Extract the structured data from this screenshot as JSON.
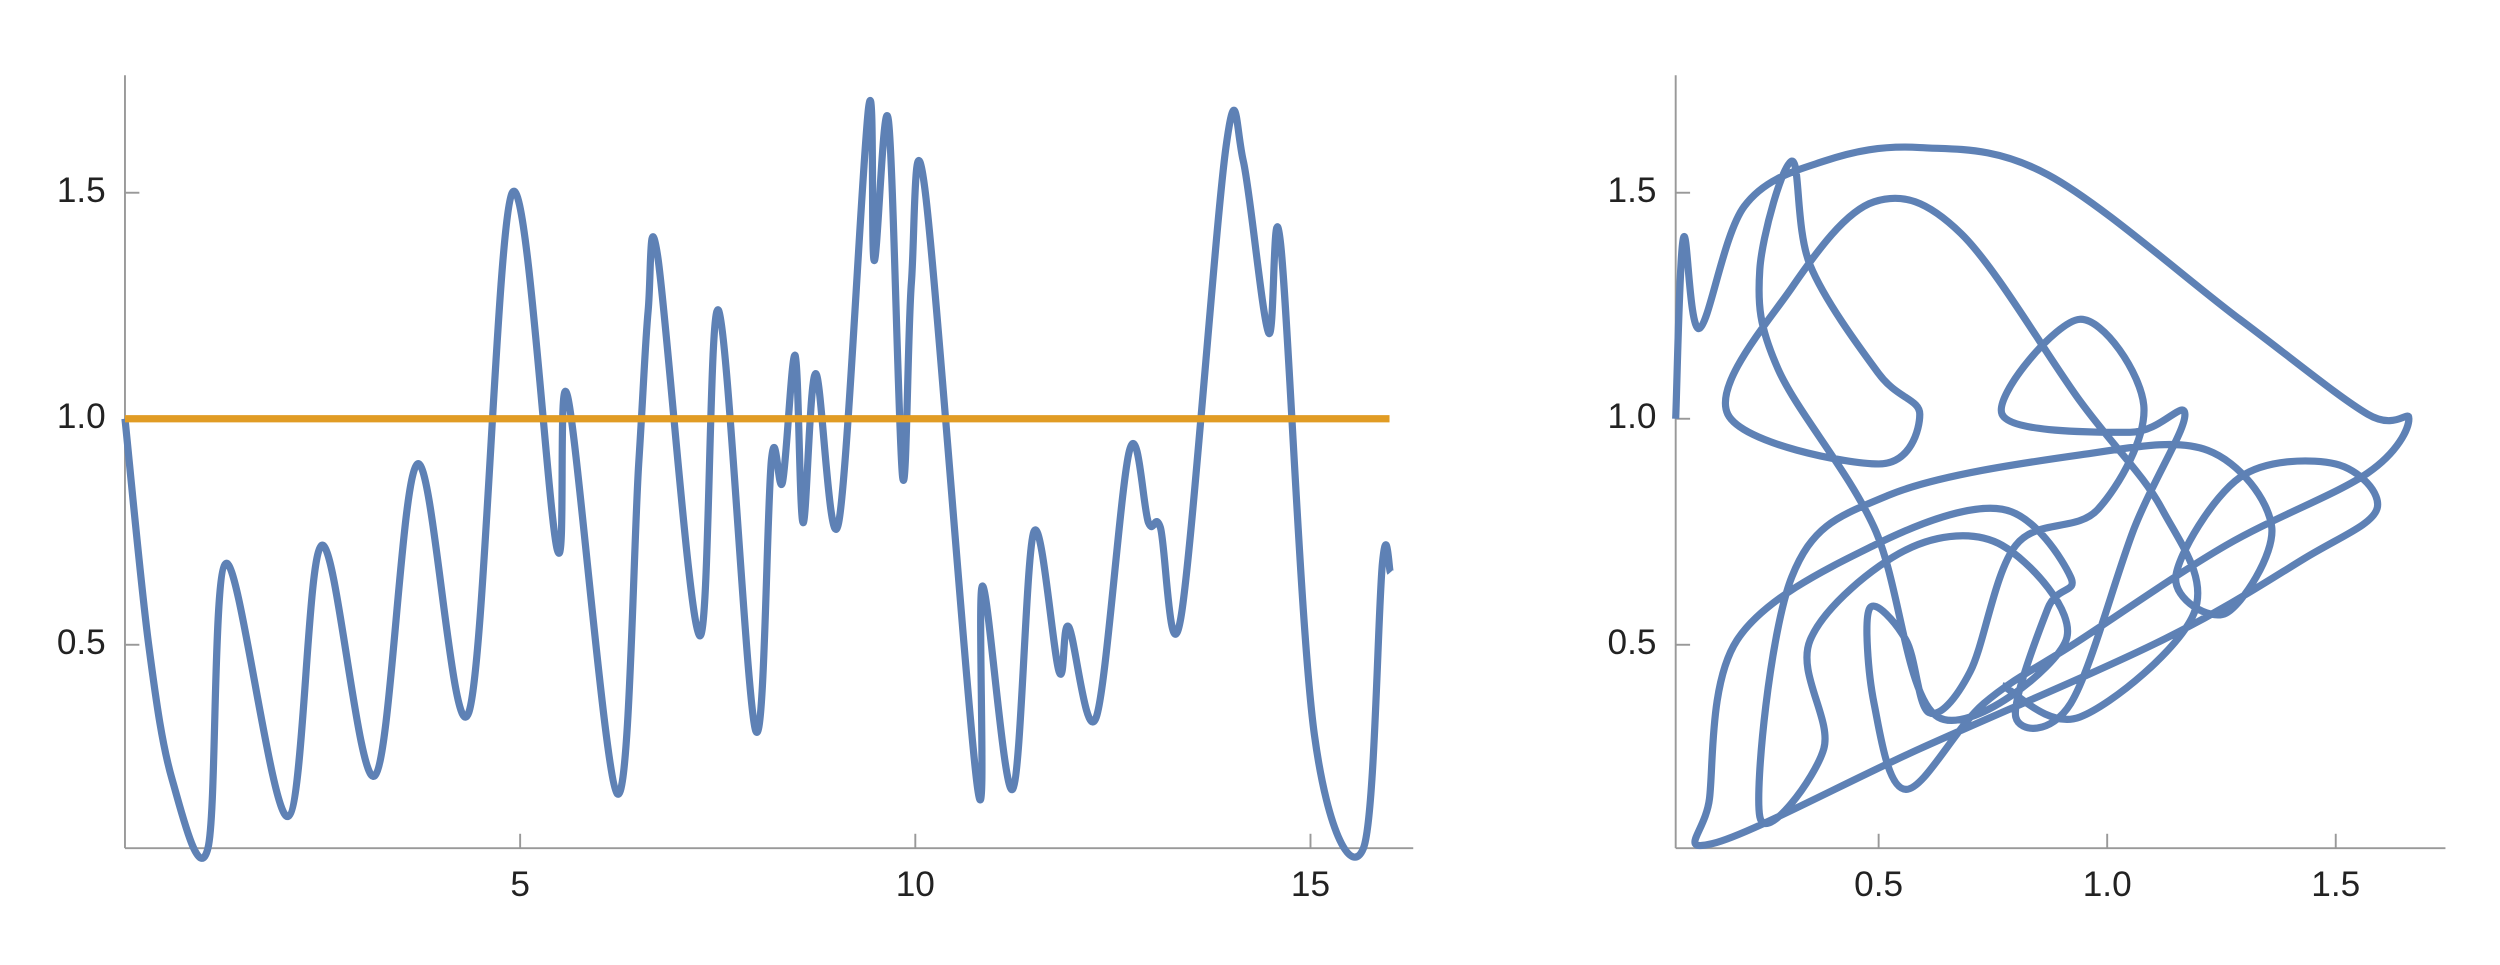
{
  "chart_data": [
    {
      "type": "line",
      "xlim": [
        0,
        16.3
      ],
      "ylim": [
        0.05,
        1.76
      ],
      "xticks": [
        5,
        10,
        15
      ],
      "yticks": [
        0.5,
        {
          "value": 1,
          "label": "1.0"
        },
        1.5
      ],
      "series": [
        {
          "color": "#5e81b5",
          "x": [
            0,
            0.3,
            0.6,
            1.05,
            1.28,
            2.06,
            2.49,
            3.16,
            3.7,
            4.35,
            4.9,
            5.47,
            5.6,
            6.23,
            6.5,
            6.62,
            6.74,
            7.27,
            7.51,
            7.98,
            8.18,
            8.32,
            8.48,
            8.58,
            8.74,
            9.03,
            9.41,
            9.48,
            9.66,
            9.84,
            9.95,
            10.12,
            10.79,
            10.85,
            11.23,
            11.5,
            11.82,
            11.94,
            12.29,
            12.71,
            12.95,
            13.1,
            13.36,
            13.93,
            14.15,
            14.47,
            14.62,
            15.05,
            15.67,
            15.91,
            16.01
          ],
          "values": [
            1.0,
            0.5,
            0.2,
            0.05,
            0.68,
            0.12,
            0.72,
            0.21,
            0.9,
            0.35,
            1.5,
            0.71,
            1.05,
            0.17,
            0.9,
            1.24,
            1.36,
            0.52,
            1.24,
            0.31,
            0.91,
            0.86,
            1.14,
            0.77,
            1.1,
            0.77,
            1.69,
            1.35,
            1.66,
            0.87,
            1.3,
            1.51,
            0.18,
            0.63,
            0.18,
            0.75,
            0.44,
            0.54,
            0.34,
            0.93,
            0.77,
            0.76,
            0.56,
            1.6,
            1.57,
            1.19,
            1.39,
            0.3,
            0.05,
            0.68,
            0.66
          ]
        },
        {
          "color": "#e19c24",
          "x": [
            0,
            16
          ],
          "values": [
            1,
            1
          ]
        }
      ]
    },
    {
      "type": "line",
      "xlim": [
        0.056,
        1.74
      ],
      "ylim": [
        0.05,
        1.76
      ],
      "xticks": [
        0.5,
        {
          "value": 1,
          "label": "1.0"
        },
        1.5
      ],
      "yticks": [
        0.5,
        {
          "value": 1,
          "label": "1.0"
        },
        1.5
      ],
      "series": [
        {
          "color": "#5e81b5",
          "x": [
            0.056,
            0.073,
            0.108,
            0.206,
            0.381,
            0.59,
            0.87,
            1.29,
            1.57,
            1.66,
            1.57,
            1.26,
            0.94,
            0.73,
            0.56,
            0.49,
            0.48,
            0.56,
            0.61,
            0.7,
            0.8,
            0.98,
            1.08,
            0.94,
            0.77,
            1.05,
            1.17,
            1.06,
            0.92,
            0.8,
            0.87,
            0.92,
            0.77,
            0.49,
            0.19,
            0.13,
            0.136,
            0.59,
            1.12,
            1.43,
            1.59,
            1.5,
            1.29,
            1.15,
            1.26,
            1.36,
            1.22,
            0.94,
            0.52,
            0.31,
            0.24,
            0.38,
            0.35,
            0.56,
            0.77,
            0.91,
            0.63,
            0.49,
            0.28,
            0.24,
            0.31,
            0.35,
            0.5,
            0.59,
            0.5,
            0.17,
            0.31,
            0.49,
            0.68,
            0.94,
            1.12,
            1.19,
            0.94,
            0.77
          ],
          "values": [
            1.0,
            1.4,
            1.2,
            1.47,
            1.57,
            1.6,
            1.54,
            1.22,
            1.01,
            1.0,
            0.88,
            0.72,
            0.51,
            0.37,
            0.18,
            0.37,
            0.58,
            0.51,
            0.35,
            0.44,
            0.72,
            0.8,
            1.03,
            1.22,
            1.01,
            0.97,
            1.01,
            0.76,
            0.37,
            0.34,
            0.58,
            0.65,
            0.8,
            0.72,
            0.51,
            0.16,
            0.06,
            0.27,
            0.51,
            0.69,
            0.8,
            0.9,
            0.87,
            0.65,
            0.57,
            0.76,
            0.93,
            0.92,
            0.83,
            0.65,
            0.12,
            0.27,
            0.51,
            0.71,
            0.72,
            0.51,
            0.34,
            0.76,
            1.11,
            1.33,
            1.57,
            1.34,
            1.1,
            1.01,
            0.9,
            1.01,
            1.29,
            1.48,
            1.41,
            1.04,
            0.8,
            0.57,
            0.34,
            0.41
          ]
        }
      ]
    }
  ]
}
